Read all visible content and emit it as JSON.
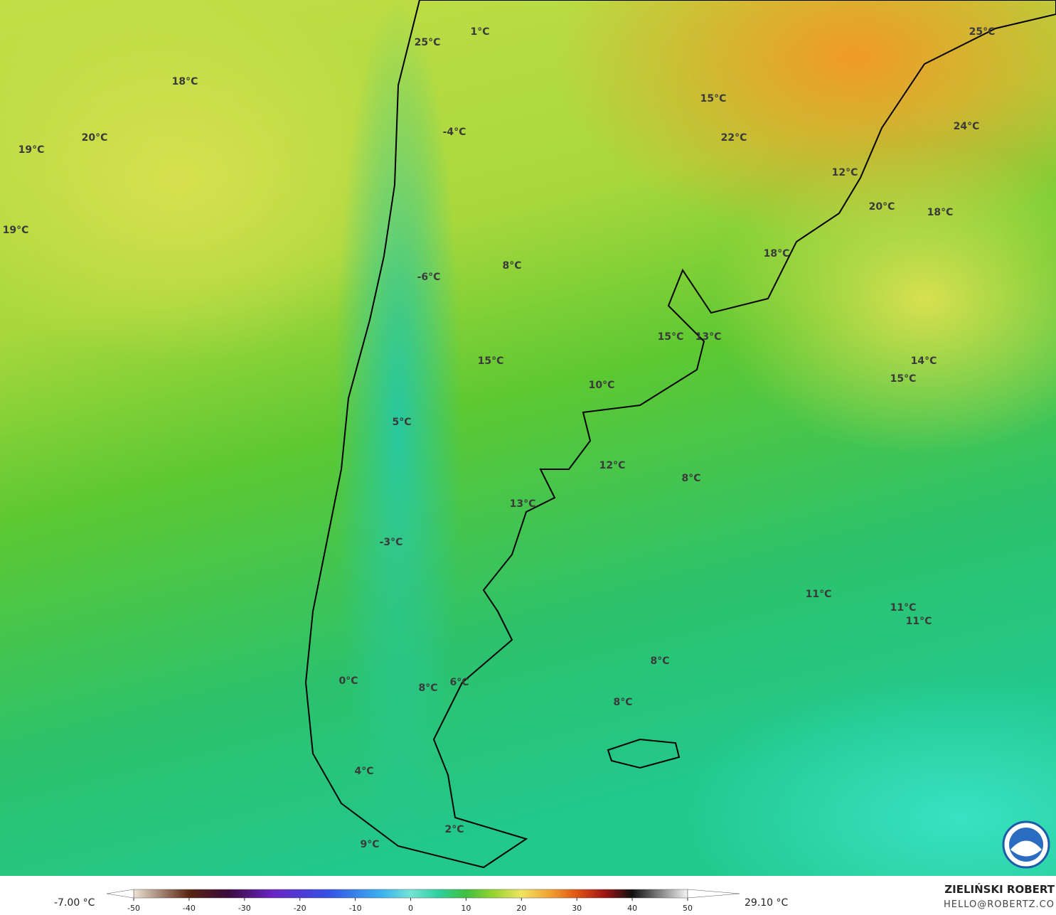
{
  "map": {
    "labels": [
      "1°C",
      "25°C",
      "18°C",
      "20°C",
      "19°C",
      "19°C",
      "-4°C",
      "-6°C",
      "8°C",
      "15°C",
      "10°C",
      "5°C",
      "12°C",
      "8°C",
      "13°C",
      "-3°C",
      "11°C",
      "11°C",
      "11°C",
      "8°C",
      "8°C",
      "0°C",
      "8°C",
      "6°C",
      "4°C",
      "2°C",
      "9°C",
      "15°C",
      "22°C",
      "25°C",
      "24°C",
      "12°C",
      "20°C",
      "18°C",
      "18°C",
      "15°C",
      "13°C",
      "14°C",
      "15°C"
    ]
  },
  "colorbar": {
    "min_label": "-7.00 °C",
    "max_label": "29.10 °C",
    "range": [
      -50,
      50
    ],
    "ticks": [
      -50,
      -40,
      -30,
      -20,
      -10,
      0,
      10,
      20,
      30,
      40,
      50
    ]
  },
  "credit": {
    "name": "ZIELIŃSKI ROBERT",
    "email": "HELLO@ROBERTZ.CO"
  }
}
